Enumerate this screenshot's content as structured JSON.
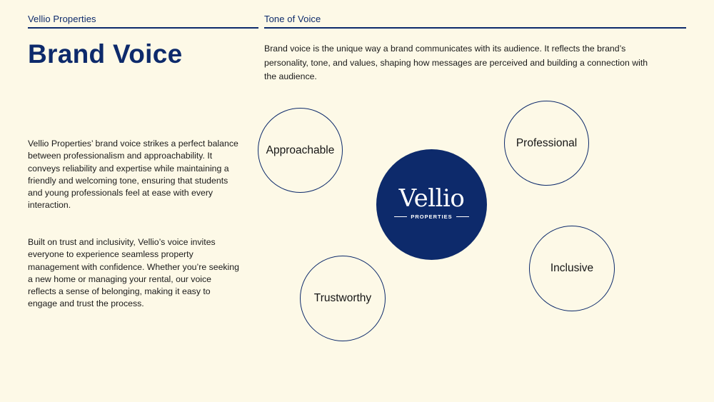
{
  "header": {
    "left_label": "Vellio Properties",
    "right_label": "Tone of Voice"
  },
  "title": "Brand Voice",
  "intro": "Brand voice is the unique way a brand communicates with its audience. It reflects the brand’s personality, tone, and values, shaping how messages are perceived and building a connection with the audience.",
  "body": {
    "paragraph1": "Vellio Properties’ brand voice strikes a perfect balance between professionalism and approachability. It conveys reliability and expertise while maintaining a friendly and welcoming tone, ensuring that students and young professionals feel at ease with every interaction.",
    "paragraph2": "Built on trust and inclusivity, Vellio’s voice invites everyone to experience seamless property management with confidence. Whether you’re seeking a new home or managing your rental, our voice reflects a sense of belonging, making it easy to engage and trust the process."
  },
  "traits": {
    "approachable": "Approachable",
    "professional": "Professional",
    "inclusive": "Inclusive",
    "trustworthy": "Trustworthy"
  },
  "logo": {
    "wordmark": "Vellio",
    "subtitle": "PROPERTIES"
  },
  "colors": {
    "background": "#fdf9e7",
    "brand_navy": "#0d2a6b",
    "text": "#1a1a1a"
  }
}
